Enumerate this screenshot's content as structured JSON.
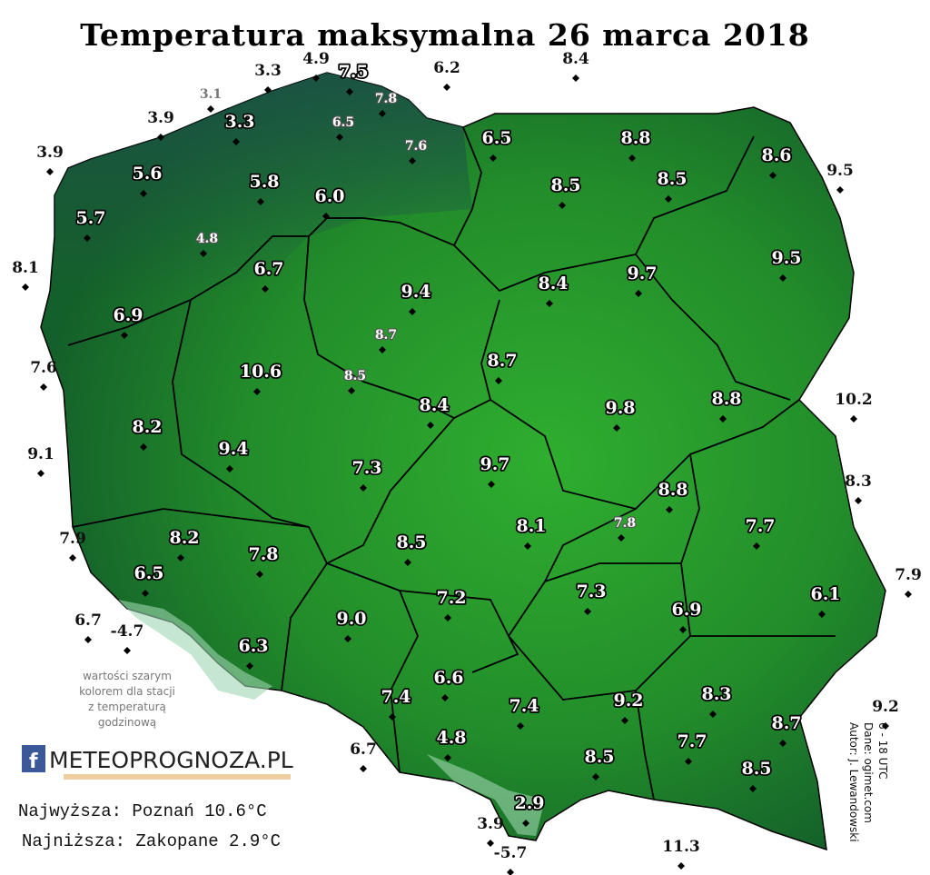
{
  "title": "Temperatura maksymalna 26 marca 2018",
  "stations": {
    "inside": [
      "7.5",
      "3.3",
      "5.6",
      "5.8",
      "6.0",
      "5.7",
      "6.7",
      "6.9",
      "10.6",
      "8.2",
      "9.4",
      "9.4",
      "8.7",
      "8.4",
      "7.3",
      "9.7",
      "6.5",
      "8.8",
      "8.5",
      "8.5",
      "8.6",
      "9.5",
      "9.7",
      "8.4",
      "9.8",
      "8.8",
      "8.8",
      "8.1",
      "8.5",
      "8.2",
      "7.8",
      "6.5",
      "7.7",
      "6.1",
      "7.2",
      "7.3",
      "6.9",
      "9.0",
      "6.3",
      "6.6",
      "7.4",
      "7.4",
      "9.2",
      "8.3",
      "8.7",
      "7.7",
      "8.5",
      "8.5",
      "4.8",
      "2.9"
    ],
    "hourly": [
      "7.8",
      "6.5",
      "7.6",
      "4.8",
      "8.7",
      "8.5",
      "7.8"
    ],
    "outside": [
      "3.3",
      "4.9",
      "6.2",
      "8.4",
      "3.9",
      "3.9",
      "8.1",
      "7.6",
      "9.1",
      "7.9",
      "6.7",
      "-4.7",
      "6.7",
      "3.9",
      "-5.7",
      "11.3",
      "9.2",
      "7.9",
      "8.3",
      "10.2",
      "9.5"
    ],
    "outside_hourly": [
      "3.1"
    ]
  },
  "note": [
    "wartości szarym",
    "kolorem dla stacji",
    "z temperaturą",
    "godzinową"
  ],
  "logo": "METEOPROGNOZA.PL",
  "records": [
    "Najwyższa: Poznań 10.6°C",
    "Najniższa: Zakopane 2.9°C"
  ],
  "credits": [
    "Autor: J. Lewandowski",
    "Dane: ogimet.com",
    "6 - 18 UTC"
  ]
}
